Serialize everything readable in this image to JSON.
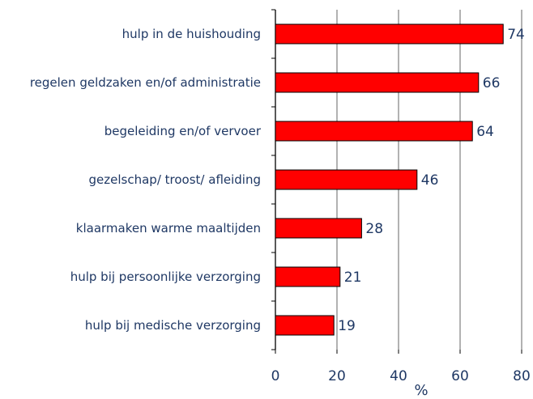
{
  "chart_data": {
    "type": "barh",
    "categories": [
      "hulp in de huishouding",
      "regelen geldzaken en/of administratie",
      "begeleiding en/of vervoer",
      "gezelschap/ troost/ afleiding",
      "klaarmaken warme maaltijden",
      "hulp bij persoonlijke verzorging",
      "hulp bij medische verzorging"
    ],
    "values": [
      74,
      66,
      64,
      46,
      28,
      21,
      19
    ],
    "color": "#ff0000",
    "xlabel": "%",
    "xlim": [
      0,
      80
    ],
    "xticks": [
      0,
      20,
      40,
      60,
      80
    ],
    "grid": true
  }
}
